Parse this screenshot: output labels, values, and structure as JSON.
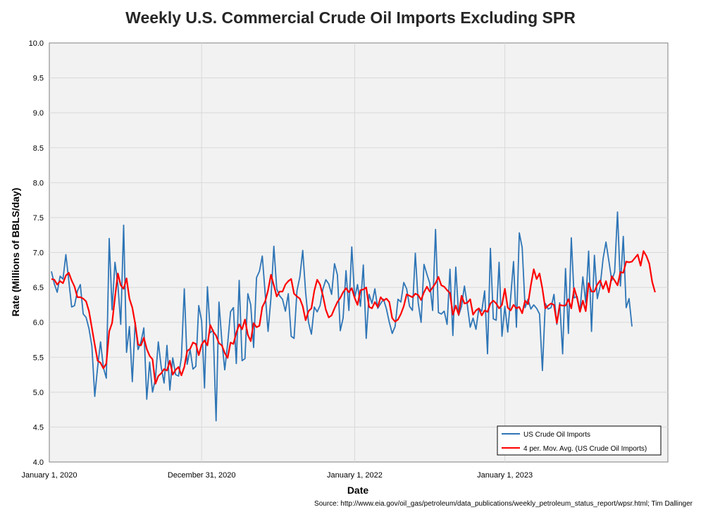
{
  "chart_data": {
    "type": "line",
    "title": "Weekly U.S. Commercial Crude Oil Imports Excluding SPR",
    "xlabel": "Date",
    "ylabel": "Rate (Millions of BBLS/day)",
    "ylim": [
      4.0,
      10.0
    ],
    "yticks": [
      "4.0",
      "4.5",
      "5.0",
      "5.5",
      "6.0",
      "6.5",
      "7.0",
      "7.5",
      "8.0",
      "8.5",
      "9.0",
      "9.5",
      "10.0"
    ],
    "xticks": [
      "January 1, 2020",
      "December 31, 2020",
      "January 1, 2022",
      "January 1, 2023"
    ],
    "grid": true,
    "legend_position": "bottom-right",
    "source": "Source: http://www.eia.gov/oil_gas/petroleum/data_publications/weekly_petroleum_status_report/wpsr.html; Tim Dallinger",
    "series": [
      {
        "name": "US Crude Oil Imports",
        "color": "#2e75b6",
        "values": [
          6.73,
          6.55,
          6.43,
          6.66,
          6.62,
          6.97,
          6.6,
          6.22,
          6.24,
          6.45,
          6.54,
          6.12,
          6.07,
          5.91,
          5.66,
          4.94,
          5.36,
          5.72,
          5.35,
          5.2,
          7.2,
          6.18,
          6.86,
          6.54,
          5.97,
          7.39,
          5.57,
          5.94,
          5.15,
          6.0,
          5.61,
          5.72,
          5.92,
          4.9,
          5.43,
          5.0,
          5.19,
          5.72,
          5.36,
          5.13,
          5.67,
          5.03,
          5.49,
          5.25,
          5.23,
          5.5,
          6.48,
          5.4,
          5.61,
          5.33,
          5.37,
          6.24,
          6.02,
          5.06,
          6.51,
          5.85,
          5.89,
          4.59,
          6.29,
          5.73,
          5.32,
          5.69,
          6.15,
          6.21,
          5.41,
          6.6,
          5.45,
          5.48,
          6.41,
          6.25,
          5.64,
          6.64,
          6.73,
          6.95,
          6.41,
          5.87,
          6.35,
          7.09,
          6.48,
          6.38,
          6.33,
          6.16,
          6.41,
          5.8,
          5.77,
          6.45,
          6.65,
          7.03,
          6.43,
          6.0,
          5.83,
          6.22,
          6.15,
          6.24,
          6.48,
          6.61,
          6.55,
          6.4,
          6.84,
          6.68,
          5.88,
          6.06,
          6.74,
          6.17,
          7.08,
          6.35,
          6.54,
          6.23,
          6.82,
          5.77,
          6.4,
          6.27,
          6.48,
          6.2,
          6.27,
          6.33,
          6.19,
          6.0,
          5.84,
          5.94,
          6.33,
          6.29,
          6.57,
          6.48,
          6.23,
          6.17,
          6.99,
          6.28,
          6.0,
          6.83,
          6.69,
          6.56,
          6.17,
          7.33,
          6.14,
          6.12,
          6.16,
          5.97,
          6.76,
          5.81,
          6.79,
          6.1,
          6.23,
          6.52,
          6.25,
          5.93,
          6.06,
          5.9,
          6.2,
          6.16,
          6.45,
          5.55,
          7.06,
          6.05,
          6.03,
          6.86,
          5.8,
          6.23,
          5.86,
          6.35,
          6.87,
          5.93,
          7.28,
          7.07,
          6.21,
          6.33,
          6.19,
          6.25,
          6.2,
          6.12,
          5.31,
          6.27,
          6.19,
          6.21,
          6.4,
          5.97,
          6.28,
          5.55,
          6.77,
          5.84,
          7.21,
          6.35,
          6.37,
          6.16,
          6.65,
          6.28,
          7.02,
          5.87,
          6.96,
          6.34,
          6.52,
          6.91,
          7.15,
          6.88,
          6.6,
          6.72,
          7.58,
          6.52,
          7.23,
          6.21,
          6.34,
          5.94
        ]
      },
      {
        "name": "4 per. Mov. Avg. (US Crude Oil Imports)",
        "color": "#ff0000",
        "values": [
          6.62,
          6.61,
          6.54,
          6.59,
          6.56,
          6.67,
          6.71,
          6.6,
          6.51,
          6.36,
          6.36,
          6.34,
          6.3,
          6.16,
          5.92,
          5.68,
          5.45,
          5.42,
          5.34,
          5.41,
          5.87,
          5.99,
          6.36,
          6.7,
          6.53,
          6.48,
          6.63,
          6.34,
          6.21,
          5.98,
          5.68,
          5.67,
          5.78,
          5.62,
          5.52,
          5.47,
          5.12,
          5.23,
          5.27,
          5.33,
          5.31,
          5.45,
          5.25,
          5.32,
          5.36,
          5.24,
          5.36,
          5.59,
          5.62,
          5.71,
          5.69,
          5.53,
          5.68,
          5.74,
          5.67,
          5.96,
          5.87,
          5.81,
          5.7,
          5.67,
          5.56,
          5.49,
          5.71,
          5.69,
          5.85,
          5.97,
          5.9,
          6.04,
          5.82,
          5.73,
          5.99,
          5.93,
          5.95,
          6.22,
          6.3,
          6.46,
          6.68,
          6.53,
          6.37,
          6.44,
          6.44,
          6.54,
          6.59,
          6.62,
          6.41,
          6.37,
          6.34,
          6.23,
          6.03,
          6.16,
          6.2,
          6.45,
          6.61,
          6.54,
          6.38,
          6.18,
          6.07,
          6.1,
          6.2,
          6.29,
          6.35,
          6.43,
          6.49,
          6.43,
          6.49,
          6.35,
          6.25,
          6.46,
          6.47,
          6.5,
          6.22,
          6.2,
          6.29,
          6.22,
          6.36,
          6.31,
          6.34,
          6.29,
          6.06,
          6.01,
          6.04,
          6.12,
          6.23,
          6.4,
          6.38,
          6.36,
          6.41,
          6.39,
          6.32,
          6.43,
          6.51,
          6.44,
          6.5,
          6.56,
          6.65,
          6.53,
          6.51,
          6.46,
          6.42,
          6.11,
          6.24,
          6.11,
          6.38,
          6.27,
          6.28,
          6.33,
          6.11,
          6.17,
          6.2,
          6.1,
          6.17,
          6.15,
          6.27,
          6.31,
          6.27,
          6.2,
          6.25,
          6.48,
          6.21,
          6.17,
          6.25,
          6.2,
          6.22,
          6.13,
          6.31,
          6.26,
          6.53,
          6.76,
          6.62,
          6.7,
          6.48,
          6.2,
          6.24,
          6.27,
          6.25,
          5.99,
          6.25,
          6.24,
          6.24,
          6.33,
          6.2,
          6.49,
          6.35,
          6.15,
          6.31,
          6.16,
          6.56,
          6.44,
          6.44,
          6.54,
          6.6,
          6.48,
          6.59,
          6.43,
          6.66,
          6.6,
          6.53,
          6.72,
          6.71,
          6.87,
          6.86,
          6.87,
          6.92,
          6.97,
          6.81,
          7.02,
          6.95,
          6.84,
          6.58,
          6.43
        ]
      }
    ]
  }
}
